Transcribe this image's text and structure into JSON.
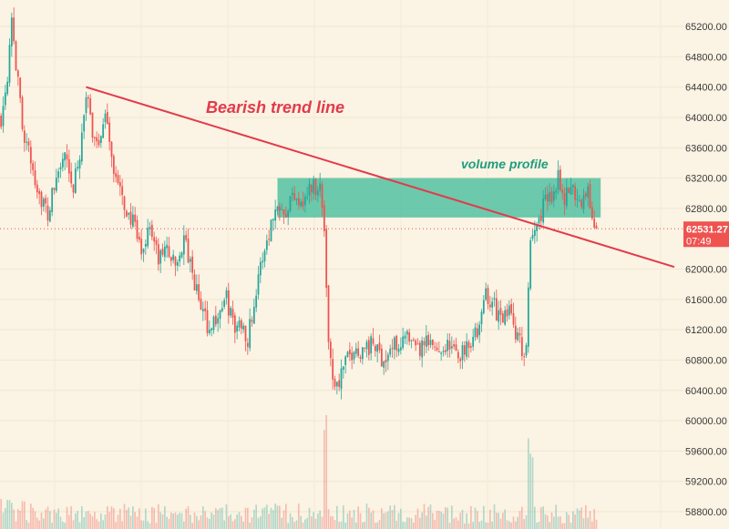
{
  "chart_data": {
    "type": "candlestick",
    "price_axis": {
      "ticks": [
        58800,
        59200,
        59600,
        60000,
        60400,
        60800,
        61200,
        61600,
        62000,
        62800,
        63200,
        63600,
        64000,
        64400,
        64800,
        65200
      ],
      "tick_labels": [
        "58800.00",
        "59200.00",
        "59600.00",
        "60000.00",
        "60400.00",
        "60800.00",
        "61200.00",
        "61600.00",
        "62000.00",
        "62800.00",
        "63200.00",
        "63600.00",
        "64000.00",
        "64400.00",
        "64800.00",
        "65200.00"
      ],
      "ylim": [
        58800,
        65400
      ]
    },
    "current_price": {
      "value": 62531.27,
      "label": "62531.27",
      "countdown": "07:49"
    },
    "trend_line": {
      "label": "Bearish trend line",
      "start": {
        "bar": 40,
        "price": 64400
      },
      "end": {
        "bar": 299,
        "price": 62100
      }
    },
    "zone": {
      "label": "volume profile",
      "bar_start": 130,
      "bar_end": 282,
      "price_top": 63200,
      "price_bottom": 62680
    },
    "bar_count": 300,
    "close_anchors": [
      [
        0,
        64000
      ],
      [
        3,
        64600
      ],
      [
        5,
        65400
      ],
      [
        7,
        64700
      ],
      [
        10,
        63900
      ],
      [
        14,
        63400
      ],
      [
        18,
        63000
      ],
      [
        22,
        62700
      ],
      [
        26,
        63200
      ],
      [
        30,
        63500
      ],
      [
        33,
        63000
      ],
      [
        36,
        63300
      ],
      [
        40,
        64300
      ],
      [
        43,
        63800
      ],
      [
        46,
        63700
      ],
      [
        50,
        64000
      ],
      [
        53,
        63300
      ],
      [
        57,
        62900
      ],
      [
        62,
        62600
      ],
      [
        66,
        62200
      ],
      [
        70,
        62600
      ],
      [
        74,
        62100
      ],
      [
        78,
        62300
      ],
      [
        82,
        62000
      ],
      [
        86,
        62400
      ],
      [
        90,
        61900
      ],
      [
        94,
        61500
      ],
      [
        98,
        61200
      ],
      [
        102,
        61400
      ],
      [
        106,
        61600
      ],
      [
        110,
        61200
      ],
      [
        113,
        61300
      ],
      [
        116,
        61100
      ],
      [
        120,
        61700
      ],
      [
        124,
        62300
      ],
      [
        128,
        62700
      ],
      [
        131,
        62900
      ],
      [
        134,
        62800
      ],
      [
        138,
        63000
      ],
      [
        142,
        62900
      ],
      [
        146,
        63100
      ],
      [
        150,
        63100
      ],
      [
        152,
        62500
      ],
      [
        154,
        61100
      ],
      [
        156,
        60600
      ],
      [
        158,
        60450
      ],
      [
        161,
        60700
      ],
      [
        165,
        60900
      ],
      [
        170,
        60950
      ],
      [
        175,
        61000
      ],
      [
        180,
        60800
      ],
      [
        185,
        61000
      ],
      [
        190,
        61100
      ],
      [
        195,
        60900
      ],
      [
        200,
        61000
      ],
      [
        205,
        60950
      ],
      [
        210,
        61000
      ],
      [
        215,
        60850
      ],
      [
        220,
        61050
      ],
      [
        225,
        61200
      ],
      [
        228,
        61700
      ],
      [
        232,
        61500
      ],
      [
        236,
        61300
      ],
      [
        240,
        61500
      ],
      [
        242,
        61200
      ],
      [
        245,
        60900
      ],
      [
        247,
        61000
      ],
      [
        249,
        62300
      ],
      [
        252,
        62600
      ],
      [
        256,
        62900
      ],
      [
        260,
        63000
      ],
      [
        262,
        63300
      ],
      [
        265,
        62900
      ],
      [
        268,
        63100
      ],
      [
        272,
        62900
      ],
      [
        276,
        63000
      ],
      [
        278,
        62700
      ],
      [
        280,
        62531
      ]
    ],
    "volume_spikes": [
      152,
      153,
      248,
      249,
      250
    ],
    "colors": {
      "up": "#26a69a",
      "down": "#ef5350",
      "trend_line": "#e23a4c",
      "zone": "#4cbf9f",
      "background": "#fbf3e3",
      "price_tag": "#ef5350"
    }
  }
}
